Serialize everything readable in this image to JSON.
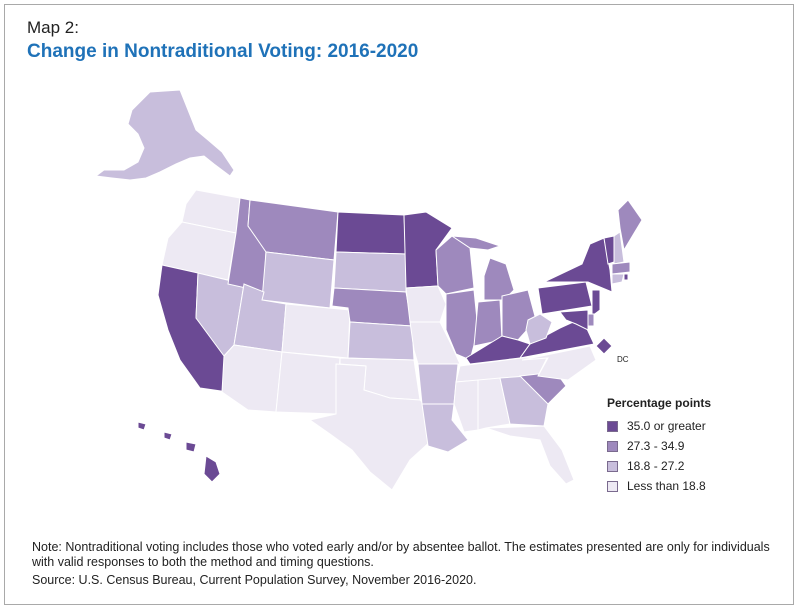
{
  "header": {
    "kicker": "Map 2:",
    "title": "Change in Nontraditional Voting: 2016-2020"
  },
  "legend": {
    "title": "Percentage points",
    "items": [
      {
        "label": "35.0 or greater",
        "color": "#6b4a94"
      },
      {
        "label": "27.3 - 34.9",
        "color": "#9e89bd"
      },
      {
        "label": "18.8 - 27.2",
        "color": "#c8bedc"
      },
      {
        "label": "Less than 18.8",
        "color": "#ede9f3"
      }
    ]
  },
  "map": {
    "dc_label": "DC"
  },
  "footer": {
    "note": "Note: Nontraditional voting includes those who voted early and/or by absentee ballot. The estimates presented are only for individuals with valid responses to both the method and timing questions.",
    "source": "Source: U.S. Census Bureau, Current Population Survey, November 2016-2020."
  }
}
